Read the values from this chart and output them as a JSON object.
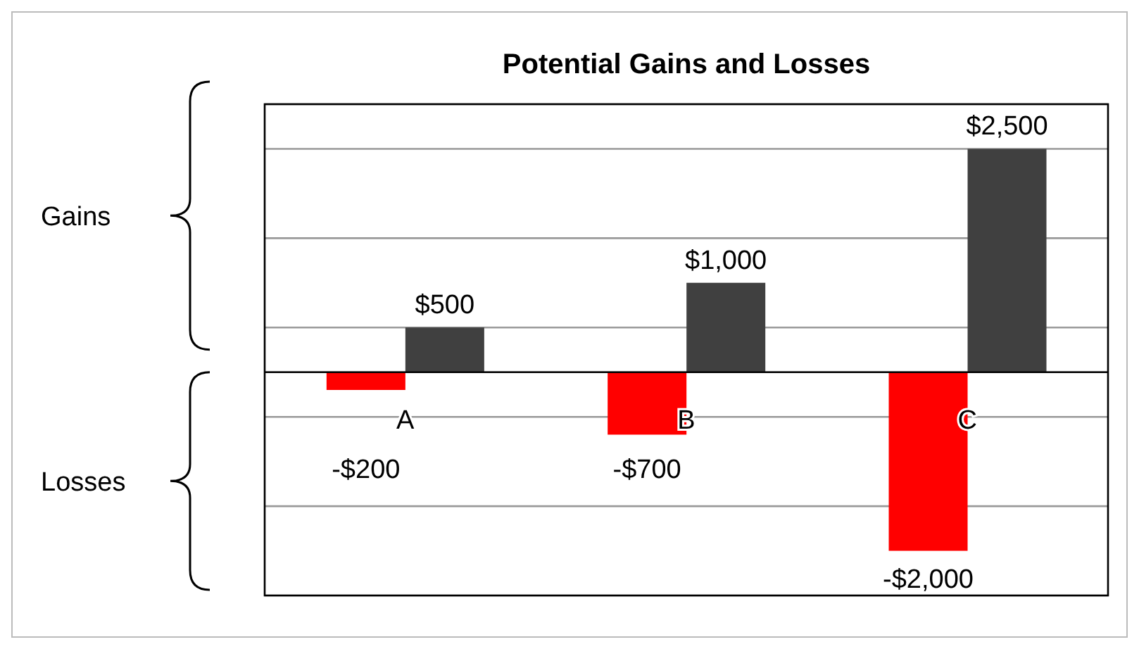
{
  "chart_data": {
    "type": "bar",
    "title": "Potential Gains and Losses",
    "categories": [
      "A",
      "B",
      "C"
    ],
    "series": [
      {
        "color": "#ff0000",
        "values": [
          -200,
          -700,
          -2000
        ],
        "value_labels": [
          "-$200",
          "-$700",
          "-$2,000"
        ]
      },
      {
        "color": "#404040",
        "values": [
          500,
          1000,
          2500
        ],
        "value_labels": [
          "$500",
          "$1,000",
          "$2,500"
        ]
      }
    ],
    "ylim": [
      -2500,
      3000
    ],
    "yticks": [
      {
        "value": -2500,
        "label": null
      },
      {
        "value": -1500,
        "label": null
      },
      {
        "value": -500,
        "label": null
      },
      {
        "value": 0,
        "label": null
      },
      {
        "value": 500,
        "label": null
      },
      {
        "value": 1500,
        "label": null
      },
      {
        "value": 2500,
        "label": null
      }
    ],
    "grid": "y",
    "tick_labels": "x",
    "legend": false,
    "annotations": [
      "Gains",
      "Losses"
    ]
  }
}
